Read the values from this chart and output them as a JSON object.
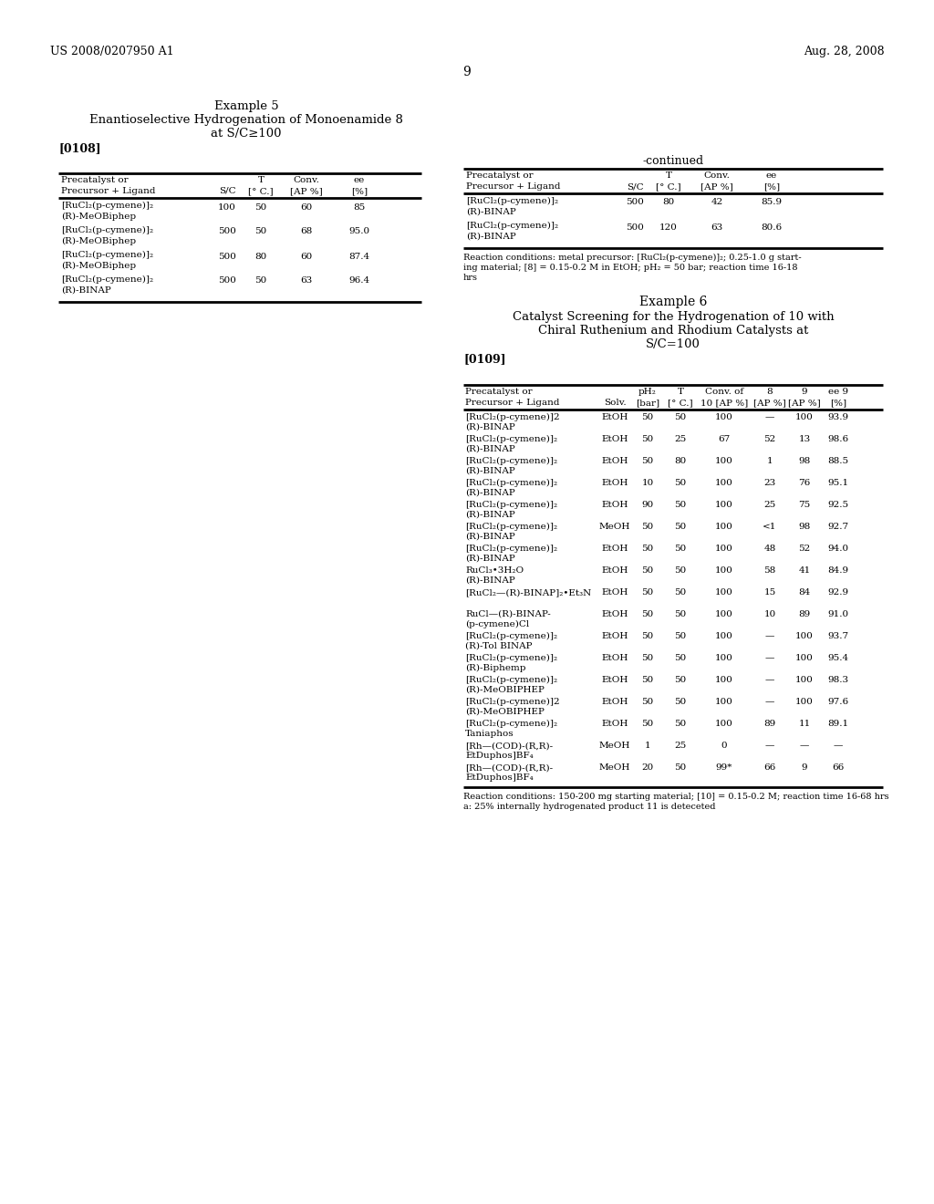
{
  "bg_color": "#ffffff",
  "header_left": "US 2008/0207950 A1",
  "header_right": "Aug. 28, 2008",
  "page_number": "9",
  "example5_title": "Example 5",
  "example5_subtitle1": "Enantioselective Hydrogenation of Monoenamide 8",
  "example5_subtitle2": "at S/C≥100",
  "example5_paragraph": "[0108]",
  "table1_rows": [
    [
      "[RuCl₂(p-cymene)]₂",
      "(R)-MeOBiphep",
      "100",
      "50",
      "60",
      "85"
    ],
    [
      "[RuCl₂(p-cymene)]₂",
      "(R)-MeOBiphep",
      "500",
      "50",
      "68",
      "95.0"
    ],
    [
      "[RuCl₂(p-cymene)]₂",
      "(R)-MeOBiphep",
      "500",
      "80",
      "60",
      "87.4"
    ],
    [
      "[RuCl₂(p-cymene)]₂",
      "(R)-BINAP",
      "500",
      "50",
      "63",
      "96.4"
    ]
  ],
  "continued_label": "-continued",
  "table2_rows": [
    [
      "[RuCl₂(p-cymene)]₂",
      "(R)-BINAP",
      "500",
      "80",
      "42",
      "85.9"
    ],
    [
      "[RuCl₂(p-cymene)]₂",
      "(R)-BINAP",
      "500",
      "120",
      "63",
      "80.6"
    ]
  ],
  "table2_footnote_lines": [
    "Reaction conditions: metal precursor: [RuCl₂(p-cymene)]₂; 0.25-1.0 g start-",
    "ing material; [8] = 0.15-0.2 M in EtOH; pH₂ = 50 bar; reaction time 16-18",
    "hrs"
  ],
  "example6_title": "Example 6",
  "example6_subtitle1": "Catalyst Screening for the Hydrogenation of 10 with",
  "example6_subtitle2": "Chiral Ruthenium and Rhodium Catalysts at",
  "example6_subtitle3": "S/C=100",
  "example6_paragraph": "[0109]",
  "table3_rows": [
    [
      "[RuCl₂(p-cymene)]2",
      "(R)-BINAP",
      "EtOH",
      "50",
      "50",
      "100",
      "—",
      "100",
      "93.9"
    ],
    [
      "[RuCl₂(p-cymene)]₂",
      "(R)-BINAP",
      "EtOH",
      "50",
      "25",
      "67",
      "52",
      "13",
      "98.6"
    ],
    [
      "[RuCl₂(p-cymene)]₂",
      "(R)-BINAP",
      "EtOH",
      "50",
      "80",
      "100",
      "1",
      "98",
      "88.5"
    ],
    [
      "[RuCl₂(p-cymene)]₂",
      "(R)-BINAP",
      "EtOH",
      "10",
      "50",
      "100",
      "23",
      "76",
      "95.1"
    ],
    [
      "[RuCl₂(p-cymene)]₂",
      "(R)-BINAP",
      "EtOH",
      "90",
      "50",
      "100",
      "25",
      "75",
      "92.5"
    ],
    [
      "[RuCl₂(p-cymene)]₂",
      "(R)-BINAP",
      "MeOH",
      "50",
      "50",
      "100",
      "<1",
      "98",
      "92.7"
    ],
    [
      "[RuCl₂(p-cymene)]₂",
      "(R)-BINAP",
      "EtOH",
      "50",
      "50",
      "100",
      "48",
      "52",
      "94.0"
    ],
    [
      "RuCl₃•3H₂O",
      "(R)-BINAP",
      "EtOH",
      "50",
      "50",
      "100",
      "58",
      "41",
      "84.9"
    ],
    [
      "[RuCl₂—(R)-BINAP]₂•Et₃N",
      "",
      "EtOH",
      "50",
      "50",
      "100",
      "15",
      "84",
      "92.9"
    ],
    [
      "RuCl—(R)-BINAP-",
      "(p-cymene)Cl",
      "EtOH",
      "50",
      "50",
      "100",
      "10",
      "89",
      "91.0"
    ],
    [
      "[RuCl₂(p-cymene)]₂",
      "(R)-Tol BINAP",
      "EtOH",
      "50",
      "50",
      "100",
      "—",
      "100",
      "93.7"
    ],
    [
      "[RuCl₂(p-cymene)]₂",
      "(R)-Biphemp",
      "EtOH",
      "50",
      "50",
      "100",
      "—",
      "100",
      "95.4"
    ],
    [
      "[RuCl₂(p-cymene)]₂",
      "(R)-MeOBIPHEP",
      "EtOH",
      "50",
      "50",
      "100",
      "—",
      "100",
      "98.3"
    ],
    [
      "[RuCl₂(p-cymene)]2",
      "(R)-MeOBIPHEP",
      "EtOH",
      "50",
      "50",
      "100",
      "—",
      "100",
      "97.6"
    ],
    [
      "[RuCl₂(p-cymene)]₂",
      "Taniaphos",
      "EtOH",
      "50",
      "50",
      "100",
      "89",
      "11",
      "89.1"
    ],
    [
      "[Rh—(COD)-(R,R)-",
      "EtDuphos]BF₄",
      "MeOH",
      "1",
      "25",
      "0",
      "—",
      "—",
      "—"
    ],
    [
      "[Rh—(COD)-(R,R)-",
      "EtDuphos]BF₄",
      "MeOH",
      "20",
      "50",
      "99*",
      "66",
      "9",
      "66"
    ]
  ],
  "table3_footnote_lines": [
    "Reaction conditions: 150-200 mg starting material; [10] = 0.15-0.2 M; reaction time 16-68 hrs",
    "a: 25% internally hydrogenated product 11 is deteceted"
  ]
}
